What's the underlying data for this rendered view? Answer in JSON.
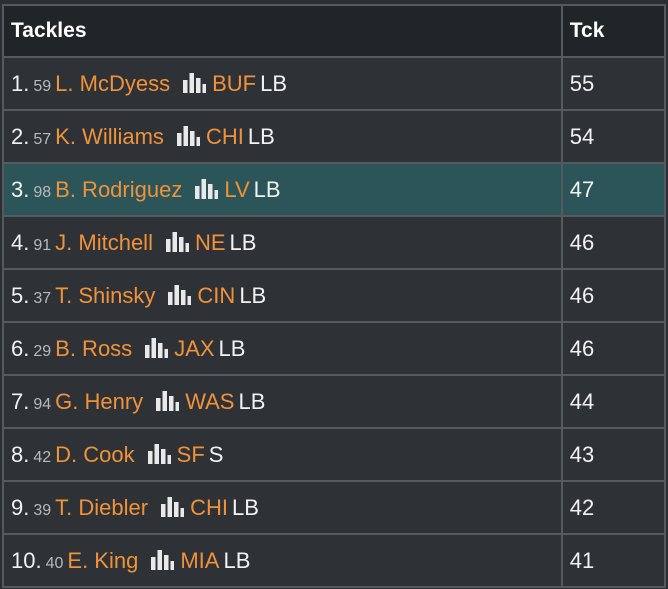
{
  "header": {
    "name_label": "Tackles",
    "value_label": "Tck"
  },
  "rows": [
    {
      "rank": "1.",
      "number": "59",
      "player": "L. McDyess",
      "team": "BUF",
      "pos": "LB",
      "value": "55"
    },
    {
      "rank": "2.",
      "number": "57",
      "player": "K. Williams",
      "team": "CHI",
      "pos": "LB",
      "value": "54"
    },
    {
      "rank": "3.",
      "number": "98",
      "player": "B. Rodriguez",
      "team": "LV",
      "pos": "LB",
      "value": "47"
    },
    {
      "rank": "4.",
      "number": "91",
      "player": "J. Mitchell",
      "team": "NE",
      "pos": "LB",
      "value": "46"
    },
    {
      "rank": "5.",
      "number": "37",
      "player": "T. Shinsky",
      "team": "CIN",
      "pos": "LB",
      "value": "46"
    },
    {
      "rank": "6.",
      "number": "29",
      "player": "B. Ross",
      "team": "JAX",
      "pos": "LB",
      "value": "46"
    },
    {
      "rank": "7.",
      "number": "94",
      "player": "G. Henry",
      "team": "WAS",
      "pos": "LB",
      "value": "44"
    },
    {
      "rank": "8.",
      "number": "42",
      "player": "D. Cook",
      "team": "SF",
      "pos": "S",
      "value": "43"
    },
    {
      "rank": "9.",
      "number": "39",
      "player": "T. Diebler",
      "team": "CHI",
      "pos": "LB",
      "value": "42"
    },
    {
      "rank": "10.",
      "number": "40",
      "player": "E. King",
      "team": "MIA",
      "pos": "LB",
      "value": "41"
    }
  ],
  "icons": {
    "stats": "bar-chart-icon"
  },
  "colors": {
    "player_link": "#f0923a",
    "highlight_row": "#2b5559",
    "header_bg": "#222528"
  }
}
